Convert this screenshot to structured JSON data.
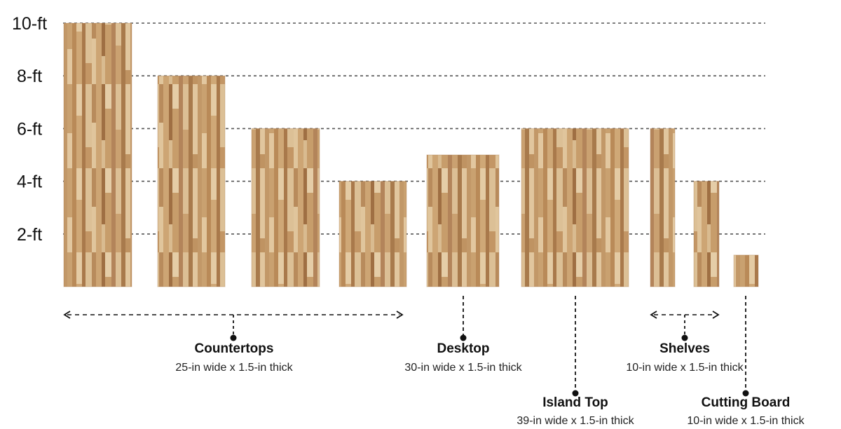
{
  "chart_data": {
    "type": "bar",
    "yunit": "ft",
    "ylim": [
      0,
      10
    ],
    "grid": true,
    "yticks": [
      {
        "value": 10,
        "label": "10-ft"
      },
      {
        "value": 8,
        "label": "8-ft"
      },
      {
        "value": 6,
        "label": "6-ft"
      },
      {
        "value": 4,
        "label": "4-ft"
      },
      {
        "value": 2,
        "label": "2-ft"
      }
    ],
    "values": [
      10,
      8,
      6,
      4,
      5,
      6,
      6,
      4,
      1.2
    ],
    "widths_in": [
      25,
      25,
      25,
      25,
      30,
      39,
      10,
      10,
      10
    ],
    "groups": [
      {
        "name": "Countertops",
        "dims": "25-in wide x 1.5-in thick",
        "bars": [
          0,
          1,
          2,
          3
        ]
      },
      {
        "name": "Desktop",
        "dims": "30-in wide x 1.5-in thick",
        "bars": [
          4
        ]
      },
      {
        "name": "Island Top",
        "dims": "39-in wide x 1.5-in thick",
        "bars": [
          5
        ]
      },
      {
        "name": "Shelves",
        "dims": "10-in wide x 1.5-in thick",
        "bars": [
          6,
          7
        ]
      },
      {
        "name": "Cutting Board",
        "dims": "10-in wide x 1.5-in thick",
        "bars": [
          8
        ]
      }
    ],
    "colors": {
      "wood_light": "#d8b98e",
      "wood_mid": "#c49a6a",
      "wood_dark": "#a9794b",
      "grid": "#555555",
      "connector": "#111111"
    }
  }
}
